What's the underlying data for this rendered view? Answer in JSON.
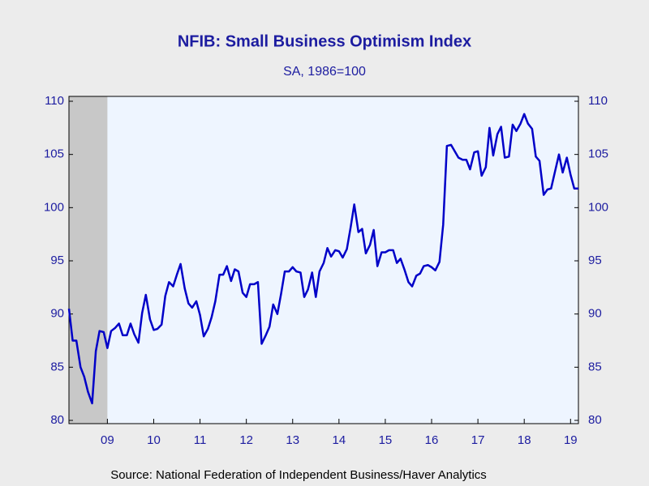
{
  "chart_data": {
    "type": "line",
    "title": "NFIB: Small Business Optimism Index",
    "subtitle": "SA, 1986=100",
    "source": "Source:  National Federation of Independent Business/Haver Analytics",
    "recession": [
      2008.67,
      2009.5
    ],
    "xlim": [
      2008.67,
      2019.67
    ],
    "xticks": [
      {
        "value": 2009.5,
        "label": "09"
      },
      {
        "value": 2010.5,
        "label": "10"
      },
      {
        "value": 2011.5,
        "label": "11"
      },
      {
        "value": 2012.5,
        "label": "12"
      },
      {
        "value": 2013.5,
        "label": "13"
      },
      {
        "value": 2014.5,
        "label": "14"
      },
      {
        "value": 2015.5,
        "label": "15"
      },
      {
        "value": 2016.5,
        "label": "16"
      },
      {
        "value": 2017.5,
        "label": "17"
      },
      {
        "value": 2018.5,
        "label": "18"
      },
      {
        "value": 2019.5,
        "label": "19"
      }
    ],
    "ylim": [
      80,
      110
    ],
    "yticks": [
      80,
      85,
      90,
      95,
      100,
      105,
      110
    ],
    "y2lim": [
      80,
      110
    ],
    "y2ticks": [
      80,
      85,
      90,
      95,
      100,
      105,
      110
    ],
    "x": [
      2008.67,
      2008.75,
      2008.83,
      2008.92,
      2009,
      2009.08,
      2009.17,
      2009.25,
      2009.33,
      2009.42,
      2009.5,
      2009.58,
      2009.67,
      2009.75,
      2009.83,
      2009.92,
      2010,
      2010.08,
      2010.17,
      2010.25,
      2010.33,
      2010.42,
      2010.5,
      2010.58,
      2010.67,
      2010.75,
      2010.83,
      2010.92,
      2011,
      2011.08,
      2011.17,
      2011.25,
      2011.33,
      2011.42,
      2011.5,
      2011.58,
      2011.67,
      2011.75,
      2011.83,
      2011.92,
      2012,
      2012.08,
      2012.17,
      2012.25,
      2012.33,
      2012.42,
      2012.5,
      2012.58,
      2012.67,
      2012.75,
      2012.83,
      2012.92,
      2013,
      2013.08,
      2013.17,
      2013.25,
      2013.33,
      2013.42,
      2013.5,
      2013.58,
      2013.67,
      2013.75,
      2013.83,
      2013.92,
      2014,
      2014.08,
      2014.17,
      2014.25,
      2014.33,
      2014.42,
      2014.5,
      2014.58,
      2014.67,
      2014.75,
      2014.83,
      2014.92,
      2015,
      2015.08,
      2015.17,
      2015.25,
      2015.33,
      2015.42,
      2015.5,
      2015.58,
      2015.67,
      2015.75,
      2015.83,
      2015.92,
      2016,
      2016.08,
      2016.17,
      2016.25,
      2016.33,
      2016.42,
      2016.5,
      2016.58,
      2016.67,
      2016.75,
      2016.83,
      2016.92,
      2017,
      2017.08,
      2017.17,
      2017.25,
      2017.33,
      2017.42,
      2017.5,
      2017.58,
      2017.67,
      2017.75,
      2017.83,
      2017.92,
      2018,
      2018.08,
      2018.17,
      2018.25,
      2018.33,
      2018.42,
      2018.5,
      2018.58,
      2018.67,
      2018.75,
      2018.83,
      2018.92,
      2019,
      2019.08,
      2019.17,
      2019.25,
      2019.33,
      2019.42,
      2019.5,
      2019.58,
      2019.67
    ],
    "series": [
      {
        "color": "#0000c8",
        "values": [
          90.5,
          87.5,
          87.5,
          85.0,
          84.1,
          82.7,
          81.6,
          86.5,
          88.4,
          88.3,
          86.8,
          88.4,
          88.7,
          89.1,
          88.0,
          88.0,
          89.1,
          88.1,
          87.3,
          90.1,
          91.8,
          89.5,
          88.5,
          88.6,
          89.0,
          91.7,
          93.0,
          92.6,
          93.7,
          94.7,
          92.4,
          91.0,
          90.6,
          91.2,
          89.9,
          87.9,
          88.6,
          89.7,
          91.2,
          93.7,
          93.7,
          94.5,
          93.1,
          94.2,
          94.0,
          92.0,
          91.6,
          92.8,
          92.8,
          93.0,
          87.2,
          88.0,
          88.8,
          90.9,
          90.0,
          91.9,
          94.0,
          94.0,
          94.4,
          94.0,
          93.9,
          91.6,
          92.3,
          93.9,
          91.6,
          94.0,
          94.8,
          96.2,
          95.4,
          96.0,
          95.9,
          95.3,
          96.1,
          98.1,
          100.3,
          97.7,
          98.0,
          95.7,
          96.5,
          97.9,
          94.5,
          95.8,
          95.8,
          96.0,
          96.0,
          94.8,
          95.2,
          94.1,
          93.0,
          92.6,
          93.6,
          93.8,
          94.5,
          94.6,
          94.4,
          94.1,
          94.9,
          98.4,
          105.8,
          105.9,
          105.3,
          104.7,
          104.5,
          104.5,
          103.6,
          105.2,
          105.3,
          103.0,
          103.8,
          107.5,
          104.9,
          106.9,
          107.6,
          104.7,
          104.8,
          107.8,
          107.2,
          107.9,
          108.8,
          107.9,
          107.4,
          104.8,
          104.4,
          101.2,
          101.7,
          101.8,
          103.5,
          105.0,
          103.3,
          104.7,
          103.1,
          101.8,
          101.8
        ]
      }
    ]
  }
}
